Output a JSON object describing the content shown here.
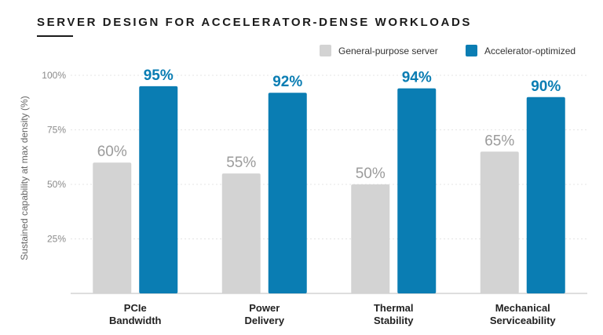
{
  "chart_data": {
    "type": "bar",
    "title": "SERVER DESIGN FOR ACCELERATOR-DENSE WORKLOADS",
    "ylabel": "Sustained capability at max density (%)",
    "xlabel": "",
    "ylim": [
      0,
      100
    ],
    "yticks": [
      {
        "value": 25,
        "label": "25%"
      },
      {
        "value": 50,
        "label": "50%"
      },
      {
        "value": 75,
        "label": "75%"
      },
      {
        "value": 100,
        "label": "100%"
      }
    ],
    "categories": [
      [
        "PCIe",
        "Bandwidth"
      ],
      [
        "Power",
        "Delivery"
      ],
      [
        "Thermal",
        "Stability"
      ],
      [
        "Mechanical",
        "Serviceability"
      ]
    ],
    "series": [
      {
        "name": "General-purpose server",
        "color": "#d3d3d3",
        "values": [
          60,
          55,
          50,
          65
        ],
        "labels": [
          "60%",
          "55%",
          "50%",
          "65%"
        ]
      },
      {
        "name": "Accelerator-optimized",
        "color": "#0a7db3",
        "values": [
          95,
          92,
          94,
          90
        ],
        "labels": [
          "95%",
          "92%",
          "94%",
          "90%"
        ]
      }
    ],
    "grid": true,
    "legend_position": "top-right"
  }
}
